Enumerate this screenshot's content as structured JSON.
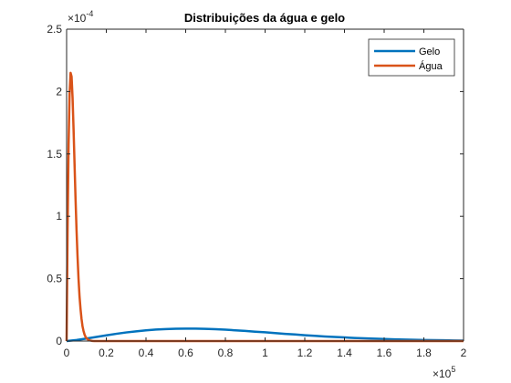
{
  "chart_data": {
    "type": "line",
    "title": "Distribuições da água e gelo",
    "xlabel": "",
    "ylabel": "",
    "xlim": [
      0,
      200000
    ],
    "ylim": [
      0,
      0.00025
    ],
    "x_ticks": [
      0,
      20000,
      40000,
      60000,
      80000,
      100000,
      120000,
      140000,
      160000,
      180000,
      200000
    ],
    "x_tick_labels": [
      "0",
      "0.2",
      "0.4",
      "0.6",
      "0.8",
      "1",
      "1.2",
      "1.4",
      "1.6",
      "1.8",
      "2"
    ],
    "y_ticks": [
      0,
      5e-05,
      0.0001,
      0.00015,
      0.0002,
      0.00025
    ],
    "y_tick_labels": [
      "0",
      "0.5",
      "1",
      "1.5",
      "2",
      "2.5"
    ],
    "x_multiplier": {
      "base": "×10",
      "exponent": "5"
    },
    "y_multiplier": {
      "base": "×10",
      "exponent": "-4"
    },
    "grid": false,
    "legend_placement": "top-right",
    "series": [
      {
        "name": "Gelo",
        "color": "#0072BD",
        "x": [
          0,
          5000,
          10000,
          15000,
          20000,
          25000,
          30000,
          35000,
          40000,
          45000,
          50000,
          55000,
          60000,
          65000,
          70000,
          75000,
          80000,
          85000,
          90000,
          95000,
          100000,
          105000,
          110000,
          115000,
          120000,
          125000,
          130000,
          135000,
          140000,
          145000,
          150000,
          155000,
          160000,
          165000,
          170000,
          175000,
          180000,
          185000,
          190000,
          195000,
          200000
        ],
        "y": [
          0,
          8e-07,
          2e-06,
          3.3e-06,
          4.6e-06,
          5.8e-06,
          6.9e-06,
          7.8e-06,
          8.6e-06,
          9.2e-06,
          9.6e-06,
          9.9e-06,
          1e-05,
          1e-05,
          9.8e-06,
          9.5e-06,
          9.1e-06,
          8.6e-06,
          8.1e-06,
          7.5e-06,
          7e-06,
          6.4e-06,
          5.8e-06,
          5.3e-06,
          4.7e-06,
          4.2e-06,
          3.7e-06,
          3.3e-06,
          2.9e-06,
          2.5e-06,
          2.2e-06,
          1.9e-06,
          1.6e-06,
          1.4e-06,
          1.2e-06,
          1e-06,
          8e-07,
          7e-07,
          6e-07,
          5e-07,
          4e-07
        ]
      },
      {
        "name": "Água",
        "color": "#D95319",
        "x": [
          0,
          500,
          1000,
          1500,
          2000,
          2500,
          3000,
          3500,
          4000,
          4500,
          5000,
          5500,
          6000,
          6500,
          7000,
          7500,
          8000,
          8500,
          9000,
          9500,
          10000,
          11000,
          12000,
          13000,
          14000,
          15000,
          20000,
          40000,
          60000,
          80000,
          100000,
          120000,
          140000,
          160000,
          180000,
          200000
        ],
        "y": [
          0,
          9e-05,
          0.000158,
          0.000198,
          0.000215,
          0.000212,
          0.000195,
          0.00017,
          0.000142,
          0.000114,
          8.9e-05,
          6.8e-05,
          5e-05,
          3.6e-05,
          2.6e-05,
          1.8e-05,
          1.2e-05,
          8.2e-06,
          5.4e-06,
          3.5e-06,
          2.3e-06,
          9e-07,
          4e-07,
          1e-07,
          0,
          0,
          0,
          0,
          0,
          0,
          0,
          0,
          0,
          0,
          0,
          0
        ]
      }
    ]
  }
}
